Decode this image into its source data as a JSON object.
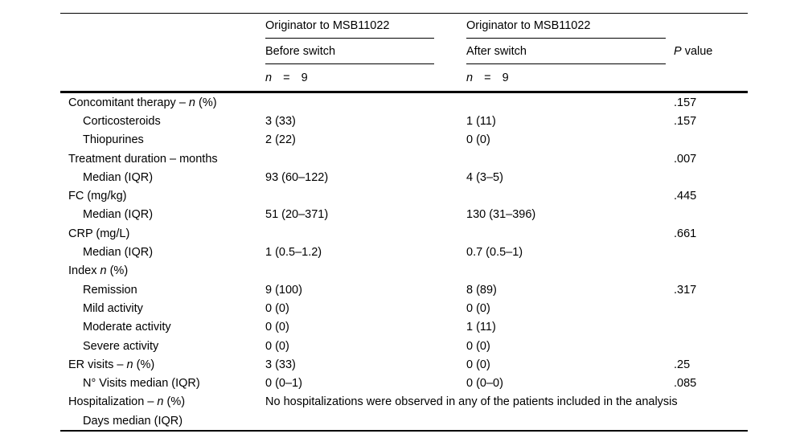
{
  "table": {
    "group_headers": [
      {
        "label": "Originator to MSB11022"
      },
      {
        "label": "Originator to MSB11022"
      }
    ],
    "sub_headers": {
      "before": "Before switch",
      "after": "After switch",
      "p": "*P* value"
    },
    "n_row": {
      "before": "*n* = 9",
      "after": "*n* = 9"
    },
    "rows": [
      {
        "label": "Concomitant therapy – *n* (%)",
        "indent": 0,
        "before": "",
        "after": "",
        "p": ".157"
      },
      {
        "label": "Corticosteroids",
        "indent": 1,
        "before": "3 (33)",
        "after": "1 (11)",
        "p": ".157"
      },
      {
        "label": "Thiopurines",
        "indent": 1,
        "before": "2 (22)",
        "after": "0 (0)",
        "p": ""
      },
      {
        "label": "Treatment duration – months",
        "indent": 0,
        "before": "",
        "after": "",
        "p": ".007"
      },
      {
        "label": "Median (IQR)",
        "indent": 1,
        "before": "93 (60–122)",
        "after": "4 (3–5)",
        "p": ""
      },
      {
        "label": "FC (mg/kg)",
        "indent": 0,
        "before": "",
        "after": "",
        "p": ".445"
      },
      {
        "label": "Median (IQR)",
        "indent": 1,
        "before": "51 (20–371)",
        "after": "130 (31–396)",
        "p": ""
      },
      {
        "label": "CRP (mg/L)",
        "indent": 0,
        "before": "",
        "after": "",
        "p": ".661"
      },
      {
        "label": "Median (IQR)",
        "indent": 1,
        "before": "1 (0.5–1.2)",
        "after": "0.7 (0.5–1)",
        "p": ""
      },
      {
        "label": "Index *n* (%)",
        "indent": 0,
        "before": "",
        "after": "",
        "p": ""
      },
      {
        "label": "Remission",
        "indent": 1,
        "before": "9 (100)",
        "after": "8 (89)",
        "p": ".317"
      },
      {
        "label": "Mild activity",
        "indent": 1,
        "before": "0 (0)",
        "after": "0 (0)",
        "p": ""
      },
      {
        "label": "Moderate activity",
        "indent": 1,
        "before": "0 (0)",
        "after": "1 (11)",
        "p": ""
      },
      {
        "label": "Severe activity",
        "indent": 1,
        "before": "0 (0)",
        "after": "0 (0)",
        "p": ""
      },
      {
        "label": "ER visits – *n* (%)",
        "indent": 0,
        "before": "3 (33)",
        "after": "0 (0)",
        "p": ".25"
      },
      {
        "label": "N° Visits median (IQR)",
        "indent": 1,
        "before": "0 (0–1)",
        "after": "0 (0–0)",
        "p": ".085"
      },
      {
        "label": "Hospitalization – *n* (%)",
        "indent": 0,
        "span": "No hospitalizations were observed in any of the patients included in the analysis",
        "p": ""
      },
      {
        "label": "Days median (IQR)",
        "indent": 1,
        "before": "",
        "after": "",
        "p": ""
      }
    ]
  },
  "colors": {
    "text": "#000000",
    "rule": "#000000",
    "background": "#ffffff"
  }
}
